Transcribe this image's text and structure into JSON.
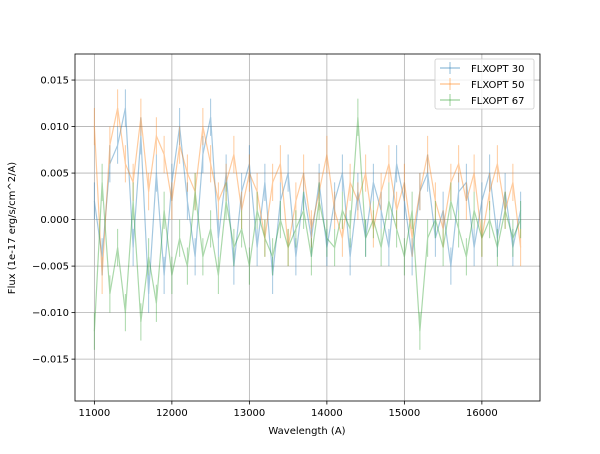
{
  "chart_data": {
    "type": "line",
    "title": "",
    "xlabel": "Wavelength (A)",
    "ylabel": "Flux (1e-17 erg/s/cm^2/A)",
    "xlim": [
      10750,
      16750
    ],
    "ylim": [
      -0.0195,
      0.0178
    ],
    "xticks": [
      11000,
      12000,
      13000,
      14000,
      15000,
      16000
    ],
    "xtick_labels": [
      "11000",
      "12000",
      "13000",
      "14000",
      "15000",
      "16000"
    ],
    "yticks": [
      0.015,
      0.01,
      0.005,
      0.0,
      -0.005,
      -0.01,
      -0.015
    ],
    "ytick_labels": [
      "0.015",
      "0.010",
      "0.005",
      "0.000",
      "−0.005",
      "−0.010",
      "−0.015"
    ],
    "grid": true,
    "legend_position": "top-right",
    "x_start": 11000,
    "x_step": 100,
    "series": [
      {
        "name": "FLXOPT 30",
        "color": "#1f77b4",
        "yerr": 0.002,
        "values": [
          0.002,
          -0.004,
          0.006,
          0.008,
          0.012,
          -0.003,
          0.009,
          -0.008,
          0.005,
          -0.006,
          0.004,
          0.01,
          0.002,
          -0.004,
          0.007,
          0.011,
          -0.002,
          0.005,
          -0.005,
          0.003,
          0.006,
          -0.003,
          0.004,
          -0.006,
          0.002,
          0.005,
          -0.004,
          0.003,
          -0.002,
          0.004,
          -0.003,
          0.002,
          0.005,
          -0.004,
          0.003,
          -0.002,
          0.004,
          0.001,
          -0.003,
          0.006,
          0.002,
          -0.004,
          0.003,
          0.005,
          -0.002,
          0.001,
          -0.005,
          0.003,
          0.004,
          -0.003,
          0.002,
          0.005,
          -0.002,
          0.003,
          -0.003,
          0.001
        ]
      },
      {
        "name": "FLXOPT 50",
        "color": "#ff7f0e",
        "yerr": 0.002,
        "values": [
          0.01,
          -0.006,
          0.008,
          0.012,
          0.006,
          0.004,
          0.011,
          0.003,
          0.009,
          0.007,
          0.002,
          0.008,
          0.005,
          0.003,
          0.01,
          0.006,
          0.002,
          0.004,
          0.007,
          0.001,
          0.005,
          0.003,
          -0.002,
          0.004,
          0.006,
          -0.003,
          0.002,
          0.005,
          -0.001,
          0.003,
          0.007,
          0.001,
          -0.002,
          0.004,
          0.002,
          0.005,
          -0.001,
          0.003,
          0.006,
          0.001,
          0.004,
          -0.002,
          0.003,
          0.007,
          0.002,
          -0.001,
          0.004,
          0.006,
          0.002,
          0.005,
          -0.002,
          0.003,
          0.006,
          0.001,
          0.004,
          -0.003
        ]
      },
      {
        "name": "FLXOPT 67",
        "color": "#2ca02c",
        "yerr": 0.002,
        "values": [
          -0.012,
          0.004,
          -0.008,
          -0.003,
          -0.01,
          0.002,
          -0.011,
          -0.004,
          -0.009,
          0.001,
          -0.006,
          -0.002,
          -0.005,
          0.003,
          -0.004,
          -0.001,
          -0.006,
          0.002,
          -0.003,
          -0.001,
          -0.005,
          0.001,
          -0.002,
          -0.004,
          0.0,
          -0.003,
          -0.001,
          0.001,
          -0.004,
          0.002,
          -0.002,
          -0.003,
          0.001,
          -0.001,
          0.011,
          -0.002,
          0.0,
          -0.003,
          0.002,
          -0.001,
          -0.004,
          0.001,
          -0.012,
          -0.002,
          0.0,
          -0.003,
          0.002,
          -0.001,
          -0.004,
          0.001,
          -0.002,
          0.0,
          -0.003,
          0.001,
          -0.002,
          0.0
        ]
      }
    ]
  }
}
